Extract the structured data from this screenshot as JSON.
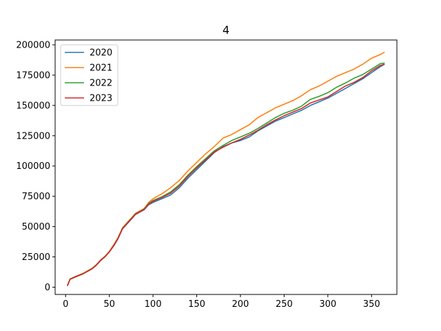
{
  "chart_data": {
    "type": "line",
    "title": "4",
    "xlabel": "",
    "ylabel": "",
    "xlim": [
      -12,
      379
    ],
    "ylim": [
      -6000,
      204000
    ],
    "xticks": [
      0,
      50,
      100,
      150,
      200,
      250,
      300,
      350
    ],
    "yticks": [
      0,
      25000,
      50000,
      75000,
      100000,
      125000,
      150000,
      175000,
      200000
    ],
    "grid": false,
    "legend": "top-left",
    "series": [
      {
        "name": "2020",
        "color": "#1f77b4",
        "points": [
          [
            2,
            1000
          ],
          [
            5,
            6500
          ],
          [
            10,
            8000
          ],
          [
            20,
            11000
          ],
          [
            30,
            15000
          ],
          [
            35,
            18000
          ],
          [
            40,
            22000
          ],
          [
            45,
            25000
          ],
          [
            50,
            29000
          ],
          [
            55,
            34000
          ],
          [
            60,
            40000
          ],
          [
            65,
            48000
          ],
          [
            70,
            52000
          ],
          [
            75,
            56000
          ],
          [
            80,
            60000
          ],
          [
            90,
            64000
          ],
          [
            95,
            68000
          ],
          [
            100,
            70000
          ],
          [
            110,
            73000
          ],
          [
            120,
            76000
          ],
          [
            130,
            82000
          ],
          [
            140,
            90000
          ],
          [
            150,
            97000
          ],
          [
            160,
            104000
          ],
          [
            170,
            111000
          ],
          [
            180,
            116000
          ],
          [
            190,
            119000
          ],
          [
            200,
            121000
          ],
          [
            210,
            124000
          ],
          [
            220,
            129000
          ],
          [
            230,
            133000
          ],
          [
            240,
            137000
          ],
          [
            250,
            140000
          ],
          [
            260,
            143000
          ],
          [
            270,
            146000
          ],
          [
            280,
            150000
          ],
          [
            290,
            153000
          ],
          [
            300,
            156000
          ],
          [
            310,
            160000
          ],
          [
            320,
            164000
          ],
          [
            330,
            168000
          ],
          [
            340,
            172000
          ],
          [
            350,
            177000
          ],
          [
            360,
            182000
          ],
          [
            365,
            184000
          ]
        ]
      },
      {
        "name": "2021",
        "color": "#ff7f0e",
        "points": [
          [
            2,
            1500
          ],
          [
            5,
            6800
          ],
          [
            10,
            8500
          ],
          [
            20,
            11500
          ],
          [
            30,
            15500
          ],
          [
            35,
            18500
          ],
          [
            40,
            22500
          ],
          [
            45,
            25500
          ],
          [
            50,
            29500
          ],
          [
            55,
            35000
          ],
          [
            60,
            41000
          ],
          [
            65,
            49000
          ],
          [
            70,
            53000
          ],
          [
            75,
            57000
          ],
          [
            80,
            61000
          ],
          [
            90,
            65000
          ],
          [
            95,
            70000
          ],
          [
            100,
            73000
          ],
          [
            110,
            77000
          ],
          [
            120,
            82000
          ],
          [
            130,
            88000
          ],
          [
            140,
            96000
          ],
          [
            150,
            103000
          ],
          [
            160,
            110000
          ],
          [
            170,
            116000
          ],
          [
            180,
            123000
          ],
          [
            190,
            126000
          ],
          [
            200,
            130000
          ],
          [
            210,
            134000
          ],
          [
            220,
            140000
          ],
          [
            230,
            144000
          ],
          [
            240,
            148000
          ],
          [
            250,
            151000
          ],
          [
            260,
            154000
          ],
          [
            270,
            158000
          ],
          [
            280,
            163000
          ],
          [
            290,
            166000
          ],
          [
            300,
            170000
          ],
          [
            310,
            174000
          ],
          [
            320,
            177000
          ],
          [
            330,
            180000
          ],
          [
            340,
            184000
          ],
          [
            350,
            189000
          ],
          [
            360,
            192000
          ],
          [
            365,
            194000
          ]
        ]
      },
      {
        "name": "2022",
        "color": "#2ca02c",
        "points": [
          [
            2,
            1200
          ],
          [
            5,
            6600
          ],
          [
            10,
            8200
          ],
          [
            20,
            11200
          ],
          [
            30,
            15200
          ],
          [
            35,
            18200
          ],
          [
            40,
            22200
          ],
          [
            45,
            25200
          ],
          [
            50,
            29200
          ],
          [
            55,
            34500
          ],
          [
            60,
            40500
          ],
          [
            65,
            48500
          ],
          [
            70,
            52500
          ],
          [
            75,
            56500
          ],
          [
            80,
            60500
          ],
          [
            90,
            64500
          ],
          [
            95,
            69000
          ],
          [
            100,
            71500
          ],
          [
            110,
            74500
          ],
          [
            120,
            78500
          ],
          [
            130,
            84500
          ],
          [
            140,
            92500
          ],
          [
            150,
            99500
          ],
          [
            160,
            106000
          ],
          [
            170,
            112500
          ],
          [
            180,
            117000
          ],
          [
            190,
            121000
          ],
          [
            200,
            124000
          ],
          [
            210,
            127000
          ],
          [
            220,
            131000
          ],
          [
            230,
            135500
          ],
          [
            240,
            140000
          ],
          [
            250,
            143500
          ],
          [
            260,
            146000
          ],
          [
            270,
            149500
          ],
          [
            280,
            155000
          ],
          [
            290,
            157500
          ],
          [
            300,
            160500
          ],
          [
            310,
            165000
          ],
          [
            320,
            168500
          ],
          [
            330,
            172500
          ],
          [
            340,
            175500
          ],
          [
            350,
            180000
          ],
          [
            360,
            184500
          ],
          [
            365,
            185000
          ]
        ]
      },
      {
        "name": "2023",
        "color": "#d62728",
        "points": [
          [
            2,
            1100
          ],
          [
            5,
            6400
          ],
          [
            10,
            8100
          ],
          [
            20,
            11100
          ],
          [
            30,
            15100
          ],
          [
            35,
            18100
          ],
          [
            40,
            22100
          ],
          [
            45,
            25100
          ],
          [
            50,
            29100
          ],
          [
            55,
            34300
          ],
          [
            60,
            40300
          ],
          [
            65,
            48300
          ],
          [
            70,
            52300
          ],
          [
            75,
            56300
          ],
          [
            80,
            60300
          ],
          [
            90,
            64300
          ],
          [
            95,
            68500
          ],
          [
            100,
            71000
          ],
          [
            110,
            74000
          ],
          [
            120,
            77500
          ],
          [
            130,
            83500
          ],
          [
            140,
            91500
          ],
          [
            150,
            98500
          ],
          [
            160,
            105000
          ],
          [
            170,
            111500
          ],
          [
            180,
            115500
          ],
          [
            190,
            119000
          ],
          [
            200,
            122000
          ],
          [
            210,
            125500
          ],
          [
            220,
            129500
          ],
          [
            230,
            134000
          ],
          [
            240,
            138000
          ],
          [
            250,
            141500
          ],
          [
            260,
            144500
          ],
          [
            270,
            147500
          ],
          [
            280,
            152000
          ],
          [
            290,
            154500
          ],
          [
            300,
            157000
          ],
          [
            310,
            161500
          ],
          [
            320,
            166000
          ],
          [
            330,
            169000
          ],
          [
            340,
            173000
          ],
          [
            350,
            178500
          ],
          [
            360,
            183000
          ],
          [
            365,
            184000
          ]
        ]
      }
    ]
  }
}
